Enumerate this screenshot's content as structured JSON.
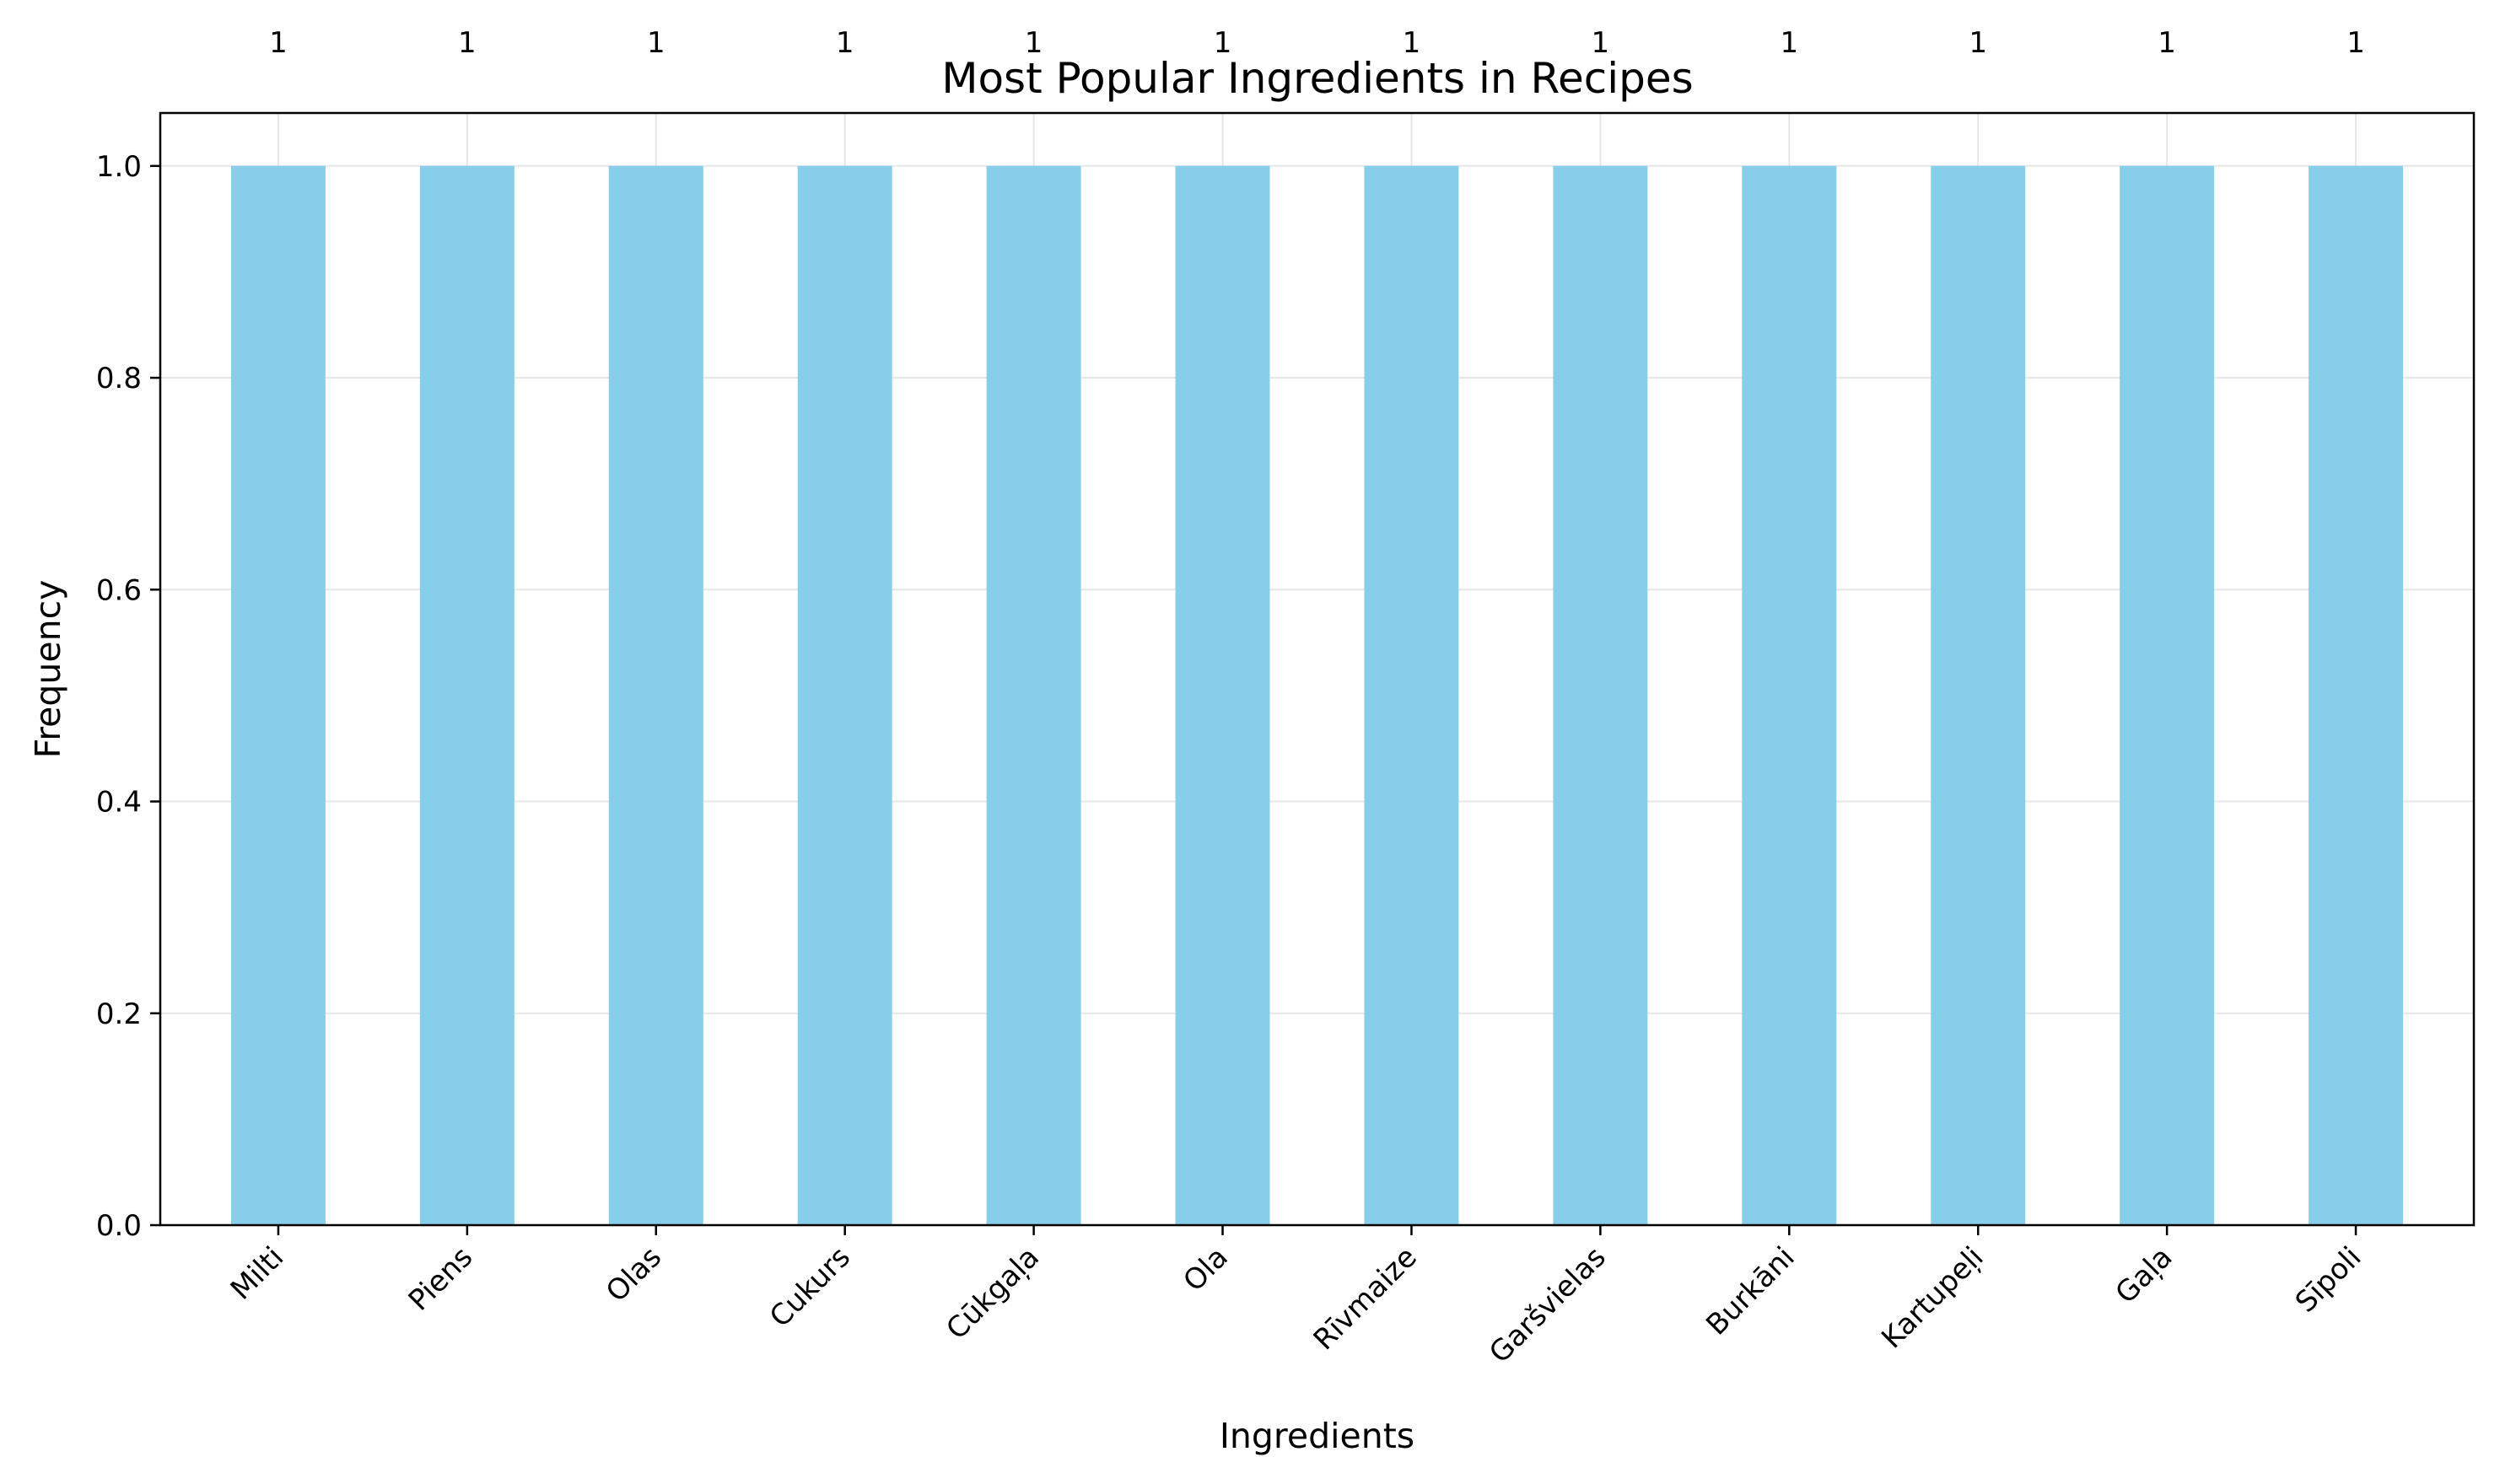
{
  "chart_data": {
    "type": "bar",
    "title": "Most Popular Ingredients in Recipes",
    "xlabel": "Ingredients",
    "ylabel": "Frequency",
    "categories": [
      "Milti",
      "Piens",
      "Olas",
      "Cukurs",
      "Cūkgaļa",
      "Ola",
      "Rīvmaize",
      "Garšvielas",
      "Burkāni",
      "Kartupeļi",
      "Gaļa",
      "Sīpoli"
    ],
    "values": [
      1,
      1,
      1,
      1,
      1,
      1,
      1,
      1,
      1,
      1,
      1,
      1
    ],
    "data_labels": [
      "1",
      "1",
      "1",
      "1",
      "1",
      "1",
      "1",
      "1",
      "1",
      "1",
      "1",
      "1"
    ],
    "ylim": [
      0,
      1.05
    ],
    "yticks": [
      "0.0",
      "0.2",
      "0.4",
      "0.6",
      "0.8",
      "1.0"
    ],
    "grid": true,
    "legend": "none",
    "bar_color": "#87CEEB"
  }
}
